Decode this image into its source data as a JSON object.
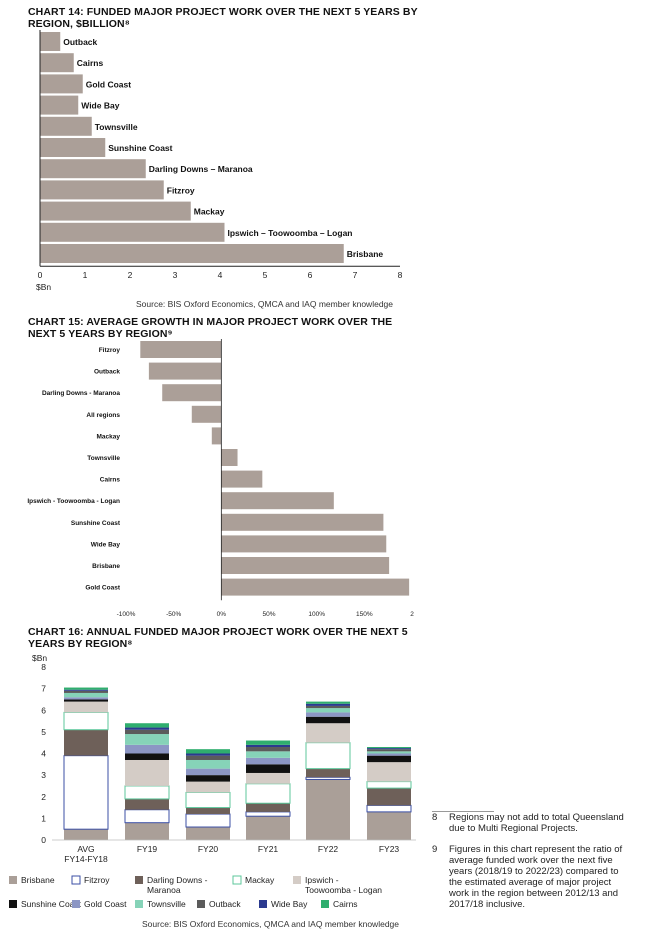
{
  "colors": {
    "bar": "#ab9f98",
    "axis": "#222",
    "grid": "#ccc",
    "Brisbane": "#aa9f98",
    "Fitzroy": "#ffffff",
    "Darling Downs - Maranoa": "#6e6059",
    "Mackay": "#ffffff",
    "Ipswich - Toowoomba - Logan": "#d4ccc6",
    "Sunshine Coast": "#111111",
    "Gold Coast": "#8c96c4",
    "Townsville": "#86d3b8",
    "Outback": "#5b5b5b",
    "Wide Bay": "#2b3a8f",
    "Cairns": "#2fae6e"
  },
  "chart_data": [
    {
      "type": "bar",
      "orientation": "horizontal",
      "title": "CHART 14: FUNDED MAJOR PROJECT WORK OVER THE NEXT 5 YEARS BY REGION, $BILLION⁸",
      "categories": [
        "Outback",
        "Cairns",
        "Gold Coast",
        "Wide Bay",
        "Townsville",
        "Sunshine Coast",
        "Darling Downs – Maranoa",
        "Fitzroy",
        "Mackay",
        "Ipswich – Toowoomba – Logan",
        "Brisbane"
      ],
      "values": [
        0.45,
        0.75,
        0.95,
        0.85,
        1.15,
        1.45,
        2.35,
        2.75,
        3.35,
        4.1,
        6.75
      ],
      "xlim": [
        0,
        8
      ],
      "xticks": [
        "0",
        "1",
        "2",
        "3",
        "4",
        "5",
        "6",
        "7",
        "8"
      ],
      "xlabel": "$Bn",
      "source": "Source: BIS Oxford Economics, QMCA and IAQ member knowledge"
    },
    {
      "type": "bar",
      "orientation": "horizontal",
      "title": "CHART 15: AVERAGE GROWTH IN MAJOR PROJECT WORK OVER THE NEXT 5 YEARS BY REGION⁹",
      "categories": [
        "Fitzroy",
        "Outback",
        "Darling Downs - Maranoa",
        "All regions",
        "Mackay",
        "Townsville",
        "Cairns",
        "Ipswich - Toowoomba - Logan",
        "Sunshine Coast",
        "Wide Bay",
        "Brisbane",
        "Gold Coast"
      ],
      "values": [
        -85,
        -76,
        -62,
        -31,
        -10,
        17,
        43,
        118,
        170,
        173,
        176,
        197
      ],
      "xlim": [
        -100,
        200
      ],
      "xticks": [
        "-100%",
        "-50%",
        "0%",
        "50%",
        "100%",
        "150%",
        "2"
      ]
    },
    {
      "type": "bar",
      "stacked": true,
      "title": "CHART 16: ANNUAL FUNDED MAJOR PROJECT WORK OVER THE NEXT 5 YEARS BY REGION⁸",
      "ylabel": "$Bn",
      "ylim": [
        0,
        8
      ],
      "yticks": [
        "0",
        "1",
        "2",
        "3",
        "4",
        "5",
        "6",
        "7",
        "8"
      ],
      "categories": [
        "AVG FY14-FY18",
        "FY19",
        "FY20",
        "FY21",
        "FY22",
        "FY23"
      ],
      "category_lines": [
        [
          "AVG",
          "FY14-FY18"
        ],
        [
          "FY19"
        ],
        [
          "FY20"
        ],
        [
          "FY21"
        ],
        [
          "FY22"
        ],
        [
          "FY23"
        ]
      ],
      "series": [
        {
          "name": "Brisbane",
          "values": [
            0.5,
            0.8,
            0.6,
            1.1,
            2.8,
            1.3
          ]
        },
        {
          "name": "Fitzroy",
          "values": [
            3.4,
            0.6,
            0.6,
            0.2,
            0.1,
            0.3
          ]
        },
        {
          "name": "Darling Downs - Maranoa",
          "values": [
            1.2,
            0.5,
            0.3,
            0.4,
            0.4,
            0.8
          ]
        },
        {
          "name": "Mackay",
          "values": [
            0.8,
            0.6,
            0.7,
            0.9,
            1.2,
            0.3
          ]
        },
        {
          "name": "Ipswich - Toowoomba - Logan",
          "values": [
            0.5,
            1.2,
            0.5,
            0.5,
            0.9,
            0.9
          ]
        },
        {
          "name": "Sunshine Coast",
          "values": [
            0.1,
            0.3,
            0.3,
            0.4,
            0.3,
            0.3
          ]
        },
        {
          "name": "Gold Coast",
          "values": [
            0.1,
            0.4,
            0.3,
            0.3,
            0.2,
            0.1
          ]
        },
        {
          "name": "Townsville",
          "values": [
            0.2,
            0.5,
            0.4,
            0.3,
            0.2,
            0.1
          ]
        },
        {
          "name": "Outback",
          "values": [
            0.1,
            0.2,
            0.2,
            0.2,
            0.1,
            0.1
          ]
        },
        {
          "name": "Wide Bay",
          "values": [
            0.05,
            0.1,
            0.1,
            0.1,
            0.1,
            0.05
          ]
        },
        {
          "name": "Cairns",
          "values": [
            0.1,
            0.2,
            0.2,
            0.2,
            0.1,
            0.05
          ]
        }
      ],
      "legend": [
        [
          "Brisbane",
          "Fitzroy",
          "Darling Downs - Maranoa",
          "Mackay",
          "Ipswich - Toowoomba - Logan"
        ],
        [
          "Sunshine Coast",
          "Gold Coast",
          "Townsville",
          "Outback",
          "Wide Bay",
          "Cairns"
        ]
      ],
      "legend_labels": {
        "Brisbane": [
          "Brisbane"
        ],
        "Fitzroy": [
          "Fitzroy"
        ],
        "Darling Downs - Maranoa": [
          "Darling Downs -",
          "Maranoa"
        ],
        "Mackay": [
          "Mackay"
        ],
        "Ipswich - Toowoomba - Logan": [
          "Ipswich -",
          "Toowoomba - Logan"
        ],
        "Sunshine Coast": [
          "Sunshine Coast"
        ],
        "Gold Coast": [
          "Gold Coast"
        ],
        "Townsville": [
          "Townsville"
        ],
        "Outback": [
          "Outback"
        ],
        "Wide Bay": [
          "Wide Bay"
        ],
        "Cairns": [
          "Cairns"
        ]
      },
      "source": "Source: BIS Oxford Economics, QMCA and IAQ member knowledge"
    }
  ],
  "notes": [
    {
      "num": "8",
      "text": "Regions may not add to total Queensland due to Multi Regional Projects."
    },
    {
      "num": "9",
      "text": "Figures in this chart represent the ratio of average funded work over the next five years (2018/19 to 2022/23) compared to the estimated average of major project work in the region between 2012/13 and 2017/18 inclusive."
    }
  ]
}
